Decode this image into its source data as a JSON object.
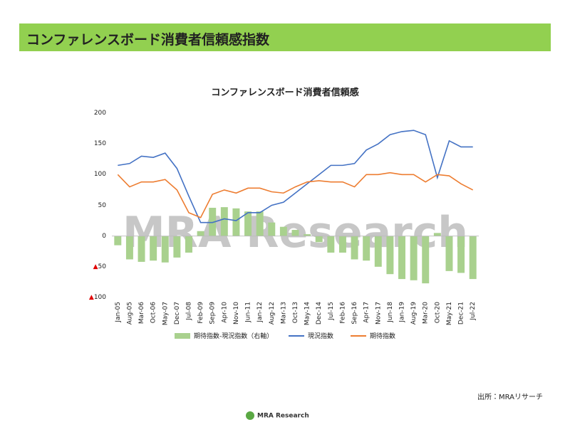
{
  "header": {
    "title": "コンファレンスボード消費者信頼感指数"
  },
  "source": "出所：MRAリサーチ",
  "footer": {
    "logo": "MRA Research"
  },
  "chart_data": {
    "type": "combo",
    "title": "コンファレンスボード消費者信頼感",
    "watermark": "MRA Research",
    "categories": [
      "Jan-05",
      "Aug-05",
      "Mar-06",
      "Oct-06",
      "May-07",
      "Dec-07",
      "Jul-08",
      "Feb-09",
      "Sep-09",
      "Apr-10",
      "Nov-10",
      "Jun-11",
      "Jan-12",
      "Aug-12",
      "Mar-13",
      "Oct-13",
      "May-14",
      "Dec-14",
      "Jul-15",
      "Feb-16",
      "Sep-16",
      "Apr-17",
      "Nov-17",
      "Jun-18",
      "Jan-19",
      "Aug-19",
      "Mar-20",
      "Oct-20",
      "May-21",
      "Dec-21",
      "Jul-22"
    ],
    "series": [
      {
        "name": "期待指数-現況指数（右軸）",
        "kind": "bar",
        "color": "#a9d18e",
        "values": [
          -15,
          -38,
          -42,
          -40,
          -43,
          -35,
          -27,
          8,
          46,
          47,
          45,
          40,
          40,
          22,
          15,
          10,
          3,
          -10,
          -27,
          -27,
          -38,
          -40,
          -50,
          -62,
          -70,
          -72,
          -77,
          5,
          -57,
          -60,
          -70
        ]
      },
      {
        "name": "現況指数",
        "kind": "line",
        "color": "#4472c4",
        "values": [
          115,
          118,
          130,
          128,
          135,
          110,
          65,
          22,
          22,
          28,
          25,
          38,
          38,
          50,
          55,
          70,
          85,
          100,
          115,
          115,
          118,
          140,
          150,
          165,
          170,
          172,
          165,
          95,
          155,
          145,
          145
        ]
      },
      {
        "name": "期待指数",
        "kind": "line",
        "color": "#ed7d31",
        "values": [
          100,
          80,
          88,
          88,
          92,
          75,
          38,
          30,
          68,
          75,
          70,
          78,
          78,
          72,
          70,
          80,
          88,
          90,
          88,
          88,
          80,
          100,
          100,
          103,
          100,
          100,
          88,
          100,
          98,
          85,
          75
        ]
      }
    ],
    "ylim": [
      -100,
      200
    ],
    "yticks": [
      {
        "value": -100,
        "label": "▲100"
      },
      {
        "value": -50,
        "label": "▲50"
      },
      0,
      50,
      100,
      150,
      200
    ]
  }
}
